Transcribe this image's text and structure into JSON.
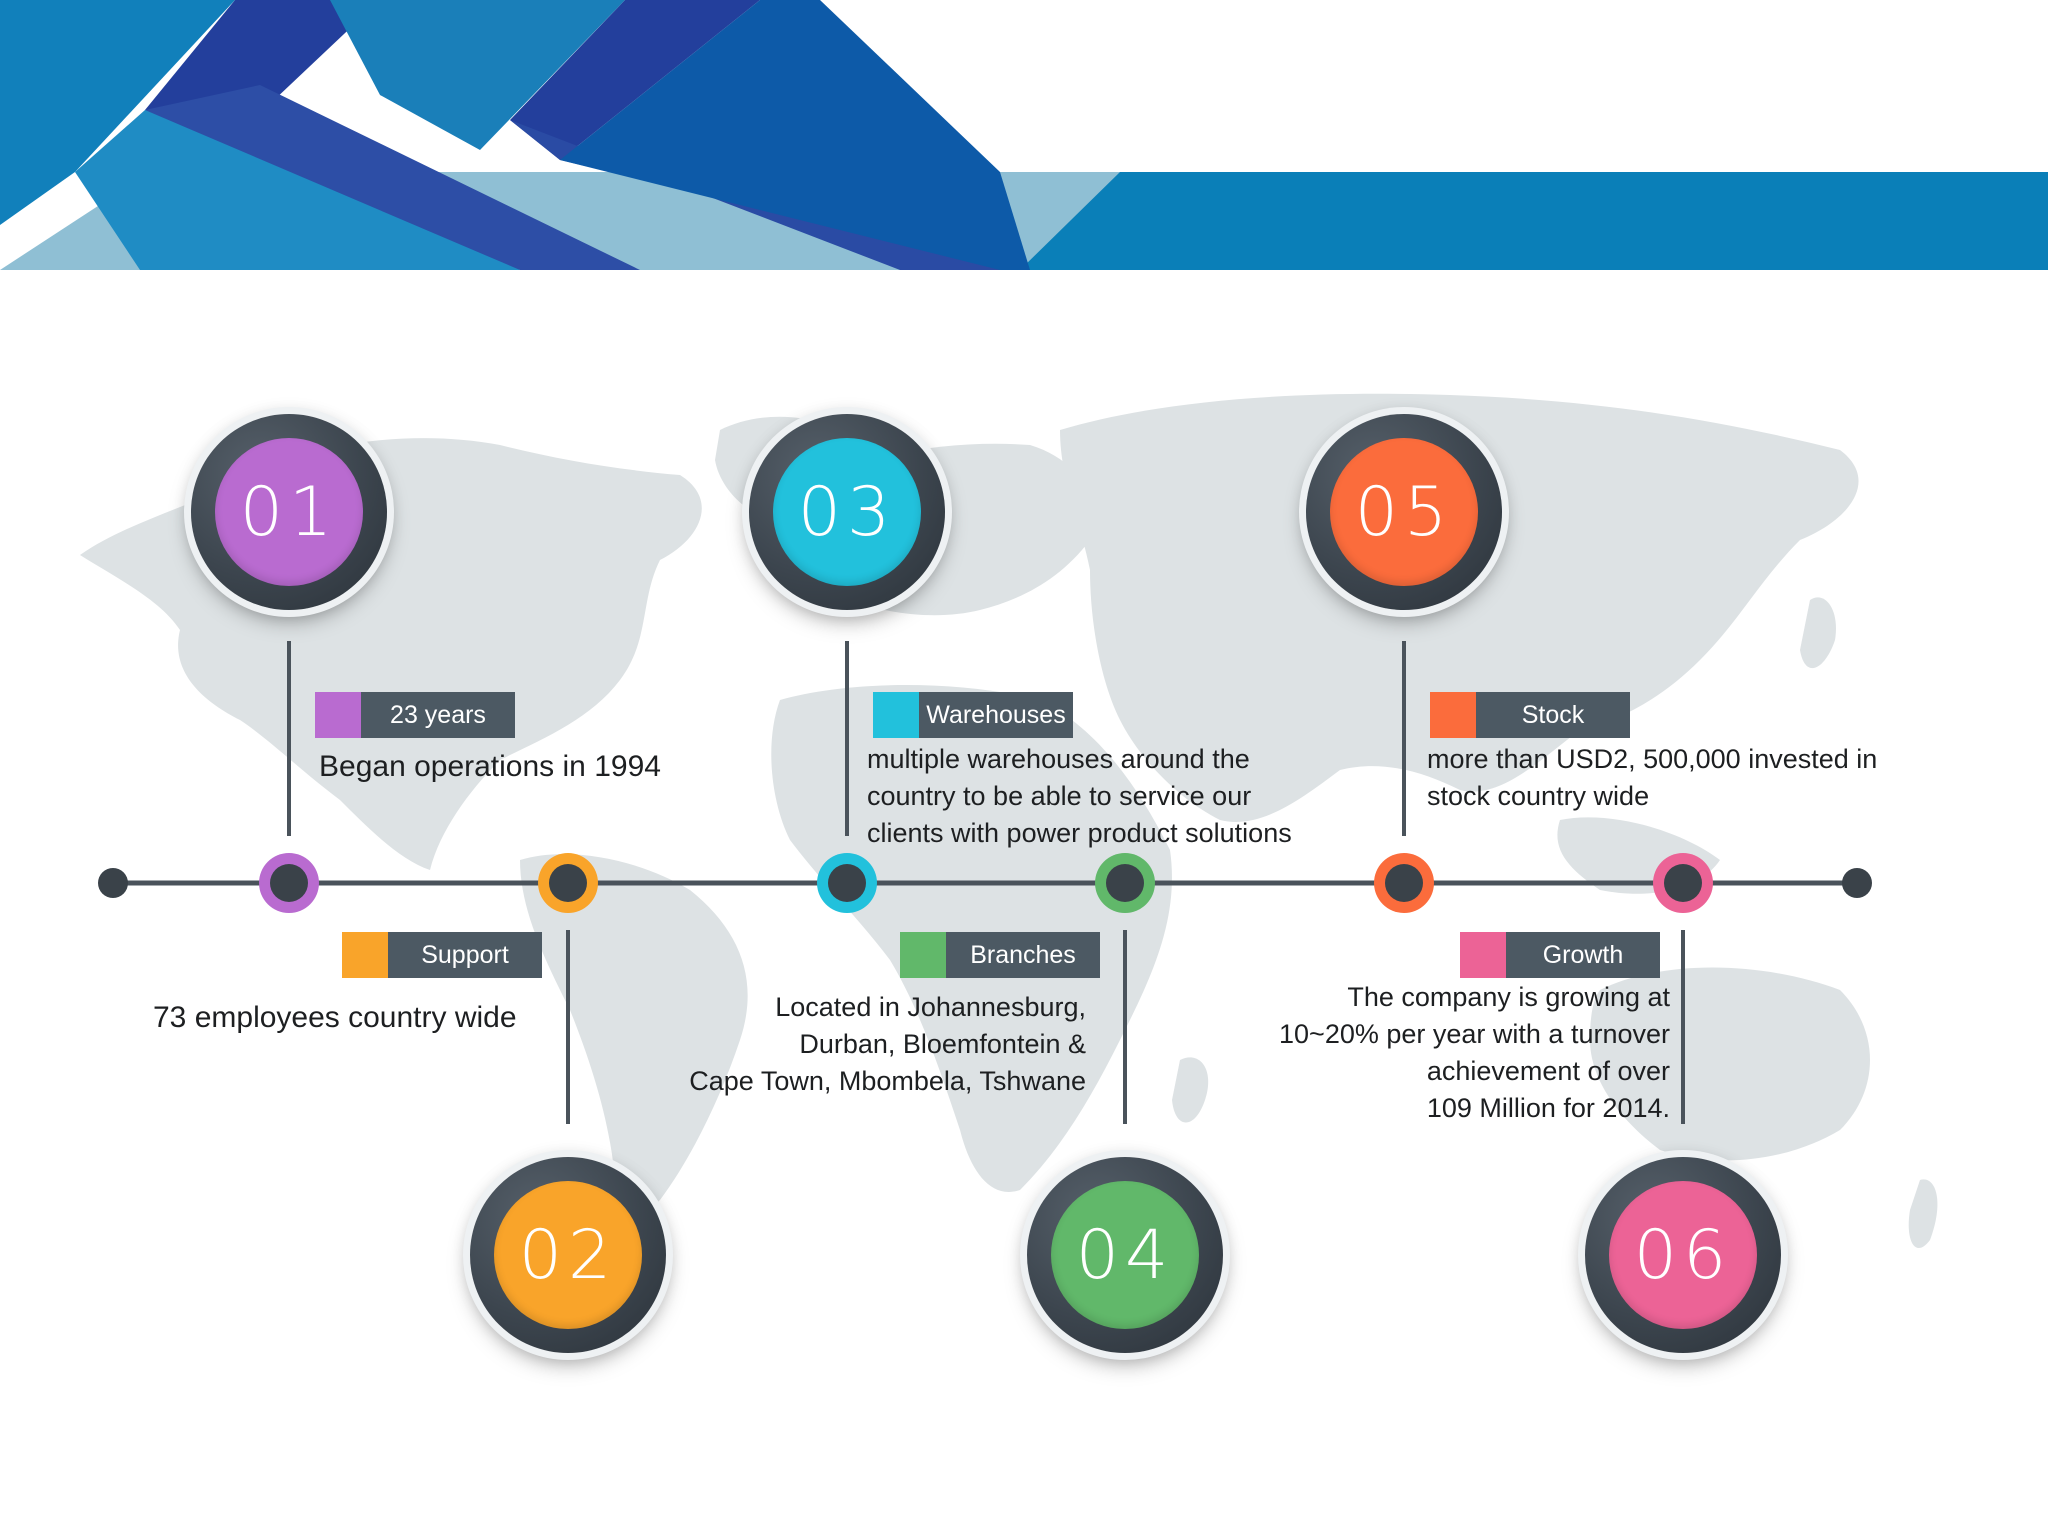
{
  "colors": {
    "banner_dark": "#1f3d9a",
    "banner_mid": "#0a7fb8",
    "banner_light": "#8fbfd4",
    "map": "#dde2e4",
    "line": "#4a535b",
    "purple": "#b96bd0",
    "orange": "#f9a42a",
    "cyan": "#22c1dc",
    "green": "#61b86a",
    "red_orange": "#fb6c3c",
    "pink": "#ec6396"
  },
  "milestones": [
    {
      "number": "01",
      "color": "#b96bd0",
      "tag": "23 years",
      "lines": [
        "Began operations in 1994"
      ]
    },
    {
      "number": "02",
      "color": "#f9a42a",
      "tag": "Support",
      "lines": [
        "73 employees country wide"
      ]
    },
    {
      "number": "03",
      "color": "#22c1dc",
      "tag": "Warehouses",
      "lines": [
        "multiple warehouses around the",
        "country to be able to service our",
        "clients with power product solutions"
      ]
    },
    {
      "number": "04",
      "color": "#61b86a",
      "tag": "Branches",
      "lines": [
        "Located in Johannesburg,",
        "Durban, Bloemfontein &",
        "Cape Town, Mbombela, Tshwane"
      ]
    },
    {
      "number": "05",
      "color": "#fb6c3c",
      "tag": "Stock",
      "lines": [
        "more than USD2, 500,000 invested in",
        "stock country wide"
      ]
    },
    {
      "number": "06",
      "color": "#ec6396",
      "tag": "Growth",
      "lines": [
        "The company is growing at",
        "10~20% per year with a turnover",
        "achievement of over",
        "109 Million for 2014."
      ]
    }
  ]
}
